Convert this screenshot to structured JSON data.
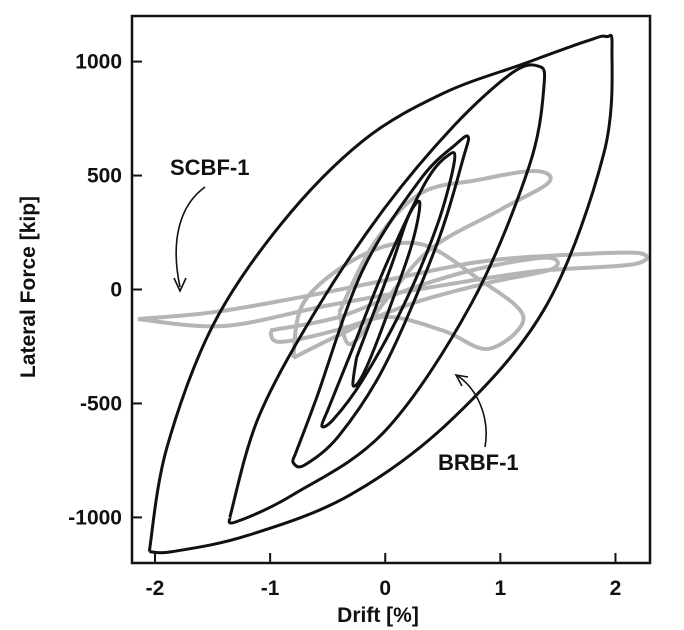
{
  "chart_data": {
    "type": "line",
    "title": "",
    "xlabel": "Drift [%]",
    "ylabel": "Lateral Force [kip]",
    "xlim": [
      -2.2,
      2.3
    ],
    "ylim": [
      -1200,
      1200
    ],
    "xticks": [
      -2,
      -1,
      0,
      1,
      2
    ],
    "yticks": [
      -1000,
      -500,
      0,
      500,
      1000
    ],
    "grid": false,
    "annotations": [
      {
        "text": "SCBF-1",
        "series": "SCBF-1"
      },
      {
        "text": "BRBF-1",
        "series": "BRBF-1"
      }
    ],
    "series": [
      {
        "name": "BRBF-1",
        "color": "#111111",
        "loops": [
          {
            "x": [
              -0.25,
              0.05,
              0.2,
              0.3,
              0.22,
              -0.05,
              -0.2,
              -0.28,
              -0.25
            ],
            "y": [
              -300,
              100,
              320,
              380,
              180,
              -200,
              -380,
              -420,
              -300
            ]
          },
          {
            "x": [
              -0.5,
              -0.3,
              0.0,
              0.35,
              0.55,
              0.6,
              0.45,
              0.15,
              -0.2,
              -0.45,
              -0.55,
              -0.5
            ],
            "y": [
              -530,
              -280,
              100,
              470,
              590,
              560,
              280,
              -80,
              -400,
              -570,
              -600,
              -530
            ]
          },
          {
            "x": [
              -0.78,
              -0.6,
              -0.2,
              0.3,
              0.62,
              0.72,
              0.68,
              0.45,
              0.0,
              -0.4,
              -0.7,
              -0.8,
              -0.78
            ],
            "y": [
              -720,
              -480,
              80,
              480,
              640,
              670,
              580,
              200,
              -330,
              -640,
              -770,
              -760,
              -720
            ]
          },
          {
            "x": [
              -1.35,
              -1.1,
              -0.6,
              0.0,
              0.6,
              1.1,
              1.33,
              1.38,
              1.25,
              0.75,
              0.0,
              -0.8,
              -1.3,
              -1.35
            ],
            "y": [
              -1000,
              -560,
              -90,
              360,
              720,
              950,
              980,
              900,
              540,
              -60,
              -620,
              -900,
              -1020,
              -1000
            ]
          },
          {
            "x": [
              -2.05,
              -1.9,
              -1.5,
              -0.9,
              -0.2,
              0.5,
              1.2,
              1.75,
              1.92,
              1.97,
              1.9,
              1.4,
              0.6,
              -0.3,
              -1.2,
              -1.85,
              -2.05
            ],
            "y": [
              -1150,
              -700,
              -160,
              290,
              650,
              860,
              990,
              1090,
              1110,
              1060,
              600,
              -70,
              -560,
              -900,
              -1080,
              -1150,
              -1150
            ]
          }
        ]
      },
      {
        "name": "SCBF-1",
        "color": "#b5b5b5",
        "loops": [
          {
            "x": [
              -2.15,
              -1.5,
              -0.8,
              0.0,
              0.8,
              1.5,
              2.2,
              2.15,
              1.3,
              0.4,
              -0.5,
              -1.4,
              -2.15
            ],
            "y": [
              -130,
              -100,
              -40,
              40,
              120,
              150,
              160,
              110,
              80,
              10,
              -70,
              -160,
              -130
            ]
          },
          {
            "x": [
              -1.0,
              -0.4,
              0.2,
              0.8,
              1.4,
              1.45,
              0.9,
              0.3,
              -0.3,
              -0.9,
              -1.0
            ],
            "y": [
              -180,
              -120,
              0,
              90,
              140,
              90,
              30,
              -50,
              -160,
              -230,
              -180
            ]
          },
          {
            "x": [
              -0.4,
              -0.1,
              0.3,
              0.8,
              1.3,
              1.42,
              1.0,
              0.4,
              0.0,
              -0.3,
              -0.4
            ],
            "y": [
              -100,
              200,
              420,
              480,
              520,
              470,
              350,
              180,
              -50,
              -240,
              -100
            ]
          },
          {
            "x": [
              -0.8,
              -0.4,
              0.0,
              0.5,
              0.9,
              1.2,
              0.8,
              0.3,
              -0.2,
              -0.7,
              -0.8
            ],
            "y": [
              -300,
              -200,
              -120,
              -180,
              -260,
              -120,
              50,
              200,
              150,
              -50,
              -300
            ]
          }
        ]
      }
    ]
  }
}
